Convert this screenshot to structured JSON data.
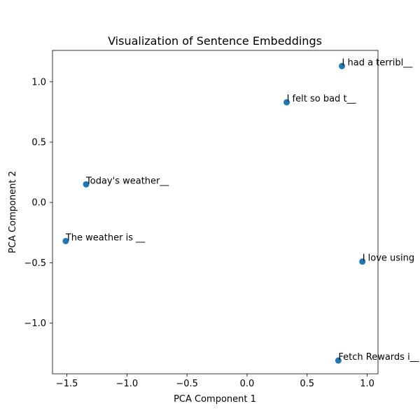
{
  "chart_data": {
    "type": "scatter",
    "title": "Visualization of Sentence Embeddings",
    "xlabel": "PCA Component 1",
    "ylabel": "PCA Component 2",
    "xlim": [
      -1.62,
      1.09
    ],
    "ylim": [
      -1.42,
      1.26
    ],
    "xticks": [
      -1.5,
      -1.0,
      -0.5,
      0.0,
      0.5,
      1.0
    ],
    "xtick_labels": [
      "−1.5",
      "−1.0",
      "−0.5",
      "0.0",
      "0.5",
      "1.0"
    ],
    "yticks": [
      -1.0,
      -0.5,
      0.0,
      0.5,
      1.0
    ],
    "ytick_labels": [
      "−1.0",
      "−0.5",
      "0.0",
      "0.5",
      "1.0"
    ],
    "grid": false,
    "marker_color": "#1f77b4",
    "points": [
      {
        "x": 0.79,
        "y": 1.13,
        "label": "I had a terribl__"
      },
      {
        "x": 0.33,
        "y": 0.83,
        "label": "I felt so bad t__"
      },
      {
        "x": -1.34,
        "y": 0.15,
        "label": "Today's weather__"
      },
      {
        "x": -1.51,
        "y": -0.32,
        "label": "The weather is __"
      },
      {
        "x": 0.96,
        "y": -0.49,
        "label": "I love using"
      },
      {
        "x": 0.76,
        "y": -1.31,
        "label": "Fetch Rewards i__"
      }
    ]
  }
}
